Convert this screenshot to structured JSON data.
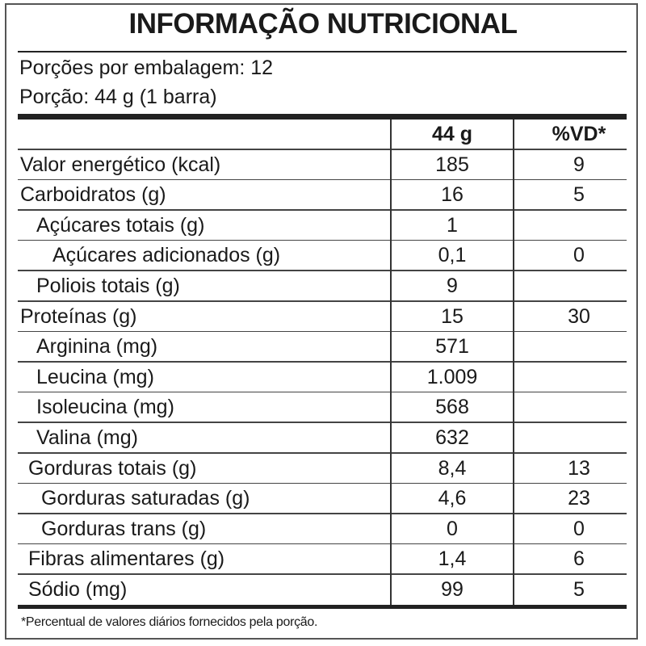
{
  "title": "INFORMAÇÃO NUTRICIONAL",
  "servings_per_package": "Porções por embalagem: 12",
  "serving_size": "Porção: 44 g (1 barra)",
  "columns": {
    "amount": "44 g",
    "dv": "%VD*"
  },
  "rows": [
    {
      "label": "Valor energético (kcal)",
      "indent": 0,
      "amount": "185",
      "dv": "9"
    },
    {
      "label": "Carboidratos (g)",
      "indent": 0,
      "amount": "16",
      "dv": "5"
    },
    {
      "label": "Açúcares totais (g)",
      "indent": 1,
      "amount": "1",
      "dv": ""
    },
    {
      "label": "Açúcares adicionados (g)",
      "indent": 2,
      "amount": "0,1",
      "dv": "0"
    },
    {
      "label": "Poliois totais (g)",
      "indent": 1,
      "amount": "9",
      "dv": ""
    },
    {
      "label": "Proteínas (g)",
      "indent": 0,
      "amount": "15",
      "dv": "30"
    },
    {
      "label": "Arginina (mg)",
      "indent": 1,
      "amount": "571",
      "dv": ""
    },
    {
      "label": "Leucina (mg)",
      "indent": 1,
      "amount": "1.009",
      "dv": ""
    },
    {
      "label": "Isoleucina (mg)",
      "indent": 1,
      "amount": "568",
      "dv": ""
    },
    {
      "label": "Valina (mg)",
      "indent": 1,
      "amount": "632",
      "dv": ""
    },
    {
      "label": "Gorduras totais (g)",
      "indent": 0.5,
      "amount": "8,4",
      "dv": "13"
    },
    {
      "label": "Gorduras saturadas (g)",
      "indent": 1.3,
      "amount": "4,6",
      "dv": "23"
    },
    {
      "label": "Gorduras trans (g)",
      "indent": 1.3,
      "amount": "0",
      "dv": "0"
    },
    {
      "label": "Fibras alimentares (g)",
      "indent": 0.5,
      "amount": "1,4",
      "dv": "6"
    },
    {
      "label": "Sódio (mg)",
      "indent": 0.5,
      "amount": "99",
      "dv": "5"
    }
  ],
  "footnote": "*Percentual de valores diários fornecidos pela porção."
}
